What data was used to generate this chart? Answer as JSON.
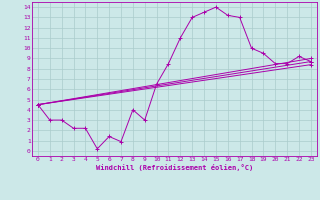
{
  "background_color": "#cce8e8",
  "grid_color": "#aacccc",
  "line_color": "#aa00aa",
  "xlabel": "Windchill (Refroidissement éolien,°C)",
  "xlim": [
    -0.5,
    23.5
  ],
  "ylim": [
    -0.5,
    14.5
  ],
  "xticks": [
    0,
    1,
    2,
    3,
    4,
    5,
    6,
    7,
    8,
    9,
    10,
    11,
    12,
    13,
    14,
    15,
    16,
    17,
    18,
    19,
    20,
    21,
    22,
    23
  ],
  "yticks": [
    0,
    1,
    2,
    3,
    4,
    5,
    6,
    7,
    8,
    9,
    10,
    11,
    12,
    13,
    14
  ],
  "series": [
    {
      "x": [
        0,
        1,
        2,
        3,
        4,
        5,
        6,
        7,
        8,
        9,
        10,
        11,
        12,
        13,
        14,
        15,
        16,
        17,
        18,
        19,
        20,
        21,
        22,
        23
      ],
      "y": [
        4.5,
        3.0,
        3.0,
        2.2,
        2.2,
        0.2,
        1.4,
        0.9,
        4.0,
        3.0,
        6.5,
        8.5,
        11.0,
        13.0,
        13.5,
        14.0,
        13.2,
        13.0,
        10.0,
        9.5,
        8.5,
        8.5,
        9.2,
        8.7
      ]
    },
    {
      "x": [
        0,
        23
      ],
      "y": [
        4.5,
        9.0
      ]
    },
    {
      "x": [
        0,
        23
      ],
      "y": [
        4.5,
        8.7
      ]
    },
    {
      "x": [
        0,
        23
      ],
      "y": [
        4.5,
        8.4
      ]
    }
  ]
}
